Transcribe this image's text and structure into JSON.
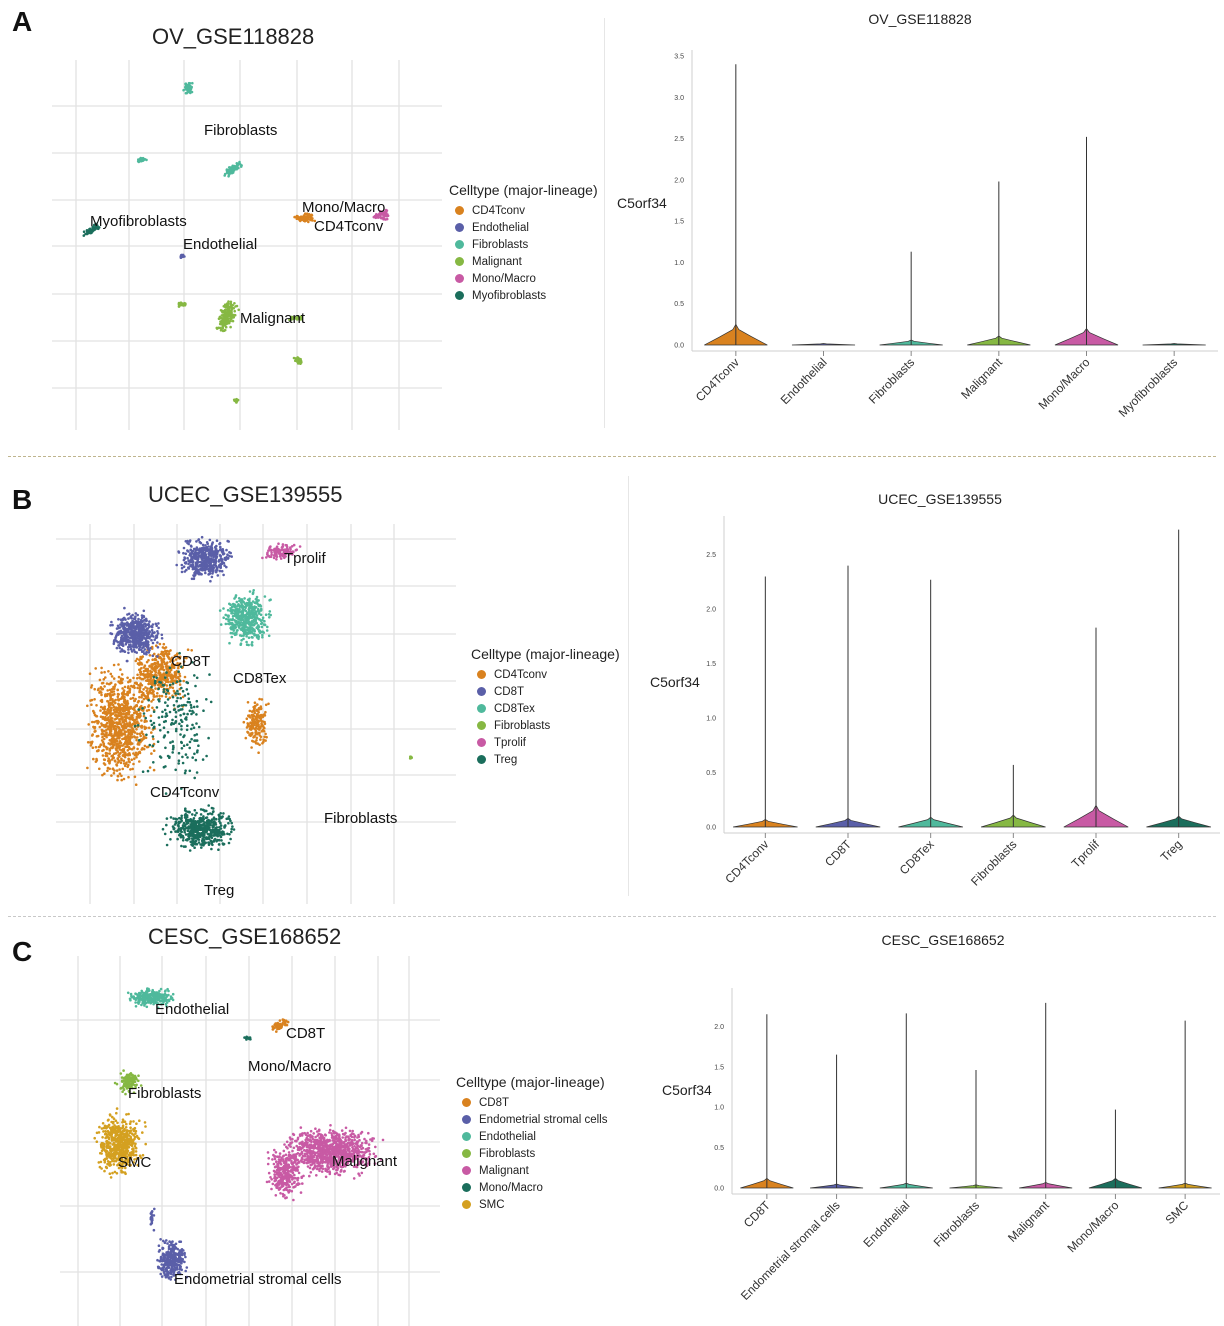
{
  "panels": [
    {
      "letter": "A",
      "umap_title": "OV_GSE118828",
      "umap_labels": [
        {
          "text": "Fibroblasts"
        },
        {
          "text": "Myofibroblasts"
        },
        {
          "text": "Endothelial"
        },
        {
          "text": "Mono/Macro"
        },
        {
          "text": "CD4Tconv"
        },
        {
          "text": "Malignant"
        }
      ],
      "legend_title": "Celltype (major-lineage)",
      "legend": [
        {
          "label": "CD4Tconv",
          "color": "#d9821f"
        },
        {
          "label": "Endothelial",
          "color": "#5a5fa8"
        },
        {
          "label": "Fibroblasts",
          "color": "#4fb99c"
        },
        {
          "label": "Malignant",
          "color": "#86b843"
        },
        {
          "label": "Mono/Macro",
          "color": "#c85aa4"
        },
        {
          "label": "Myofibroblasts",
          "color": "#1b6e5c"
        }
      ]
    },
    {
      "letter": "B",
      "umap_title": "UCEC_GSE139555",
      "umap_labels": [
        {
          "text": "Tprolif"
        },
        {
          "text": "CD8T"
        },
        {
          "text": "CD8Tex"
        },
        {
          "text": "CD4Tconv"
        },
        {
          "text": "Fibroblasts"
        },
        {
          "text": "Treg"
        }
      ],
      "legend_title": "Celltype (major-lineage)",
      "legend": [
        {
          "label": "CD4Tconv",
          "color": "#d9821f"
        },
        {
          "label": "CD8T",
          "color": "#5a5fa8"
        },
        {
          "label": "CD8Tex",
          "color": "#4fb99c"
        },
        {
          "label": "Fibroblasts",
          "color": "#86b843"
        },
        {
          "label": "Tprolif",
          "color": "#c85aa4"
        },
        {
          "label": "Treg",
          "color": "#1b6e5c"
        }
      ]
    },
    {
      "letter": "C",
      "umap_title": "CESC_GSE168652",
      "umap_labels": [
        {
          "text": "Endothelial"
        },
        {
          "text": "CD8T"
        },
        {
          "text": "Mono/Macro"
        },
        {
          "text": "Fibroblasts"
        },
        {
          "text": "SMC"
        },
        {
          "text": "Malignant"
        },
        {
          "text": "Endometrial stromal cells"
        }
      ],
      "legend_title": "Celltype (major-lineage)",
      "legend": [
        {
          "label": "CD8T",
          "color": "#d9821f"
        },
        {
          "label": "Endometrial stromal cells",
          "color": "#5a5fa8"
        },
        {
          "label": "Endothelial",
          "color": "#4fb99c"
        },
        {
          "label": "Fibroblasts",
          "color": "#86b843"
        },
        {
          "label": "Malignant",
          "color": "#c85aa4"
        },
        {
          "label": "Mono/Macro",
          "color": "#1b6e5c"
        },
        {
          "label": "SMC",
          "color": "#d4a020"
        }
      ]
    }
  ],
  "chart_data": [
    {
      "type": "violin",
      "title": "OV_GSE118828",
      "ylabel": "C5orf34",
      "ylim": [
        0,
        3.5
      ],
      "yticks": [
        "0.0",
        "0.5",
        "1.0",
        "1.5",
        "2.0",
        "2.5",
        "3.0",
        "3.5"
      ],
      "categories": [
        "CD4Tconv",
        "Endothelial",
        "Fibroblasts",
        "Malignant",
        "Mono/Macro",
        "Myofibroblasts"
      ],
      "colors": [
        "#d9821f",
        "#5a5fa8",
        "#4fb99c",
        "#86b843",
        "#c85aa4",
        "#1b6e5c"
      ],
      "max_values": [
        3.4,
        0.0,
        1.13,
        1.98,
        2.52,
        0.0
      ],
      "body_heights": [
        0.25,
        0.01,
        0.06,
        0.11,
        0.2,
        0.01
      ]
    },
    {
      "type": "violin",
      "title": "UCEC_GSE139555",
      "ylabel": "C5orf34",
      "ylim": [
        0,
        2.8
      ],
      "yticks": [
        "0.0",
        "0.5",
        "1.0",
        "1.5",
        "2.0",
        "2.5"
      ],
      "categories": [
        "CD4Tconv",
        "CD8T",
        "CD8Tex",
        "Fibroblasts",
        "Tprolif",
        "Treg"
      ],
      "colors": [
        "#d9821f",
        "#5a5fa8",
        "#4fb99c",
        "#86b843",
        "#c85aa4",
        "#1b6e5c"
      ],
      "max_values": [
        2.3,
        2.4,
        2.27,
        0.57,
        1.83,
        2.73
      ],
      "body_heights": [
        0.07,
        0.08,
        0.09,
        0.11,
        0.2,
        0.1
      ]
    },
    {
      "type": "violin",
      "title": "CESC_GSE168652",
      "ylabel": "C5orf34",
      "ylim": [
        0,
        2.4
      ],
      "yticks": [
        "0.0",
        "0.5",
        "1.0",
        "1.5",
        "2.0"
      ],
      "categories": [
        "CD8T",
        "Endometrial stromal cells",
        "Endothelial",
        "Fibroblasts",
        "Malignant",
        "Mono/Macro",
        "SMC"
      ],
      "colors": [
        "#d9821f",
        "#5a5fa8",
        "#4fb99c",
        "#86b843",
        "#c85aa4",
        "#1b6e5c",
        "#d4a020"
      ],
      "max_values": [
        2.15,
        1.65,
        2.16,
        1.46,
        2.29,
        0.97,
        2.07
      ],
      "body_heights": [
        0.12,
        0.05,
        0.06,
        0.04,
        0.07,
        0.12,
        0.06
      ]
    }
  ]
}
